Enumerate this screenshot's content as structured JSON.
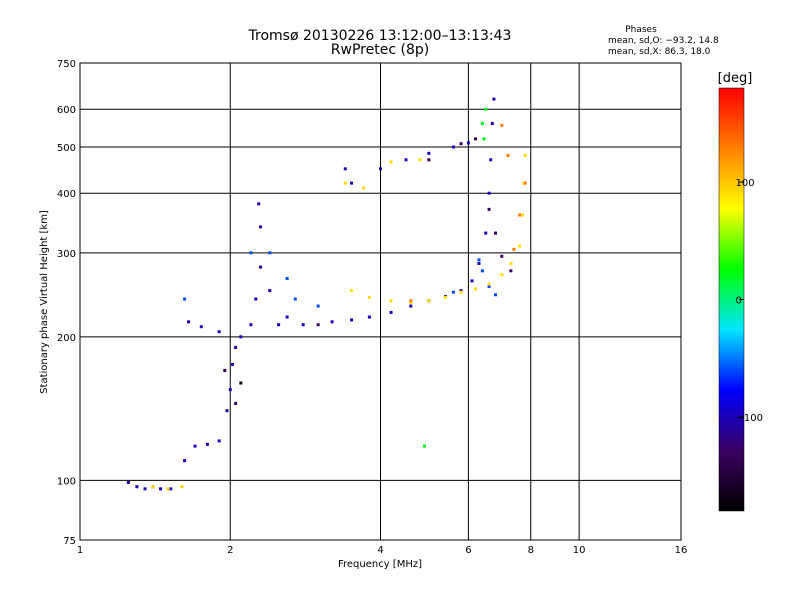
{
  "chart_data": {
    "type": "scatter",
    "title": "Tromsø 20130226 13:12:00–13:13:43",
    "subtitle": "RwPretec (8p)",
    "xlabel": "Frequency [MHz]",
    "ylabel": "Stationary phase Virtual Height [km]",
    "x_scale": "log2",
    "y_scale": "log",
    "xlim": [
      1,
      16
    ],
    "ylim": [
      75,
      750
    ],
    "x_ticks": [
      "1",
      "2",
      "4",
      "6",
      "8",
      "10",
      "16"
    ],
    "x_tick_values": [
      1,
      2,
      4,
      6,
      8,
      10,
      16
    ],
    "y_ticks": [
      "750",
      "600",
      "500",
      "400",
      "300",
      "200",
      "100",
      "75"
    ],
    "y_tick_values": [
      750,
      600,
      500,
      400,
      300,
      200,
      100,
      75
    ],
    "grid": true,
    "info": {
      "heading": "Phases",
      "line1": "mean, sd,O: −93.2, 14.8",
      "line2": "mean, sd,X:  86.3, 18.0"
    },
    "colorbar": {
      "label": "[deg]",
      "ticks": [
        "100",
        "0",
        "−100"
      ],
      "tick_values": [
        100,
        0,
        -100
      ],
      "range": [
        -180,
        180
      ],
      "colormap": [
        "#000000",
        "#3a0060",
        "#0000ff",
        "#00e5ff",
        "#00ff00",
        "#ffff00",
        "#ff8000",
        "#ff0000"
      ]
    },
    "series": [
      {
        "phase": -100,
        "points": [
          [
            1.25,
            99
          ],
          [
            1.3,
            97
          ],
          [
            1.35,
            96
          ],
          [
            1.4,
            97
          ],
          [
            1.45,
            96
          ],
          [
            1.52,
            96
          ],
          [
            1.62,
            110
          ],
          [
            1.7,
            118
          ],
          [
            1.8,
            119
          ],
          [
            1.9,
            121
          ],
          [
            1.97,
            140
          ],
          [
            2.0,
            155
          ],
          [
            2.02,
            175
          ],
          [
            2.05,
            190
          ],
          [
            2.1,
            200
          ],
          [
            2.2,
            212
          ],
          [
            2.25,
            240
          ],
          [
            2.3,
            280
          ],
          [
            2.3,
            340
          ],
          [
            2.28,
            380
          ],
          [
            2.4,
            250
          ],
          [
            2.6,
            220
          ],
          [
            1.65,
            215
          ],
          [
            1.75,
            210
          ],
          [
            1.9,
            205
          ],
          [
            2.5,
            212
          ],
          [
            2.8,
            212
          ],
          [
            3.2,
            215
          ],
          [
            3.5,
            217
          ],
          [
            3.8,
            220
          ],
          [
            4.2,
            225
          ],
          [
            4.6,
            232
          ],
          [
            5.0,
            238
          ],
          [
            5.4,
            243
          ],
          [
            5.8,
            250
          ],
          [
            6.1,
            262
          ],
          [
            6.3,
            285
          ],
          [
            6.5,
            330
          ],
          [
            6.6,
            400
          ],
          [
            6.65,
            470
          ],
          [
            6.7,
            560
          ],
          [
            6.75,
            630
          ],
          [
            3.5,
            420
          ],
          [
            4.0,
            450
          ],
          [
            4.5,
            470
          ],
          [
            5.0,
            485
          ],
          [
            5.6,
            500
          ],
          [
            6.0,
            510
          ],
          [
            3.4,
            450
          ]
        ]
      },
      {
        "phase": -60,
        "points": [
          [
            2.4,
            300
          ],
          [
            2.7,
            240
          ],
          [
            2.6,
            265
          ],
          [
            3.0,
            232
          ],
          [
            6.3,
            290
          ],
          [
            6.4,
            275
          ],
          [
            6.6,
            255
          ],
          [
            6.8,
            245
          ],
          [
            5.6,
            248
          ],
          [
            1.62,
            240
          ],
          [
            2.2,
            300
          ]
        ]
      },
      {
        "phase": 90,
        "points": [
          [
            1.4,
            97
          ],
          [
            1.5,
            96
          ],
          [
            1.6,
            97
          ],
          [
            3.5,
            250
          ],
          [
            3.8,
            242
          ],
          [
            4.2,
            238
          ],
          [
            4.6,
            236
          ],
          [
            5.0,
            238
          ],
          [
            5.4,
            242
          ],
          [
            5.8,
            248
          ],
          [
            6.2,
            252
          ],
          [
            6.6,
            258
          ],
          [
            7.0,
            270
          ],
          [
            7.3,
            285
          ],
          [
            7.6,
            310
          ],
          [
            7.7,
            360
          ],
          [
            7.75,
            420
          ],
          [
            7.8,
            480
          ],
          [
            3.4,
            420
          ],
          [
            3.7,
            410
          ],
          [
            4.2,
            465
          ],
          [
            4.8,
            470
          ]
        ]
      },
      {
        "phase": 130,
        "points": [
          [
            4.6,
            238
          ],
          [
            7.4,
            305
          ],
          [
            7.6,
            360
          ],
          [
            7.8,
            420
          ],
          [
            7.2,
            480
          ],
          [
            7.0,
            555
          ]
        ]
      },
      {
        "phase": -130,
        "points": [
          [
            6.6,
            370
          ],
          [
            6.8,
            330
          ],
          [
            7.0,
            295
          ],
          [
            7.3,
            275
          ],
          [
            5.0,
            470
          ],
          [
            5.8,
            508
          ],
          [
            6.2,
            520
          ],
          [
            3.0,
            212
          ],
          [
            1.95,
            170
          ],
          [
            2.05,
            145
          ]
        ]
      },
      {
        "phase": 20,
        "points": [
          [
            6.4,
            560
          ],
          [
            6.5,
            600
          ],
          [
            6.45,
            520
          ],
          [
            4.9,
            118
          ]
        ]
      },
      {
        "phase": -170,
        "points": [
          [
            2.1,
            160
          ]
        ]
      }
    ]
  }
}
